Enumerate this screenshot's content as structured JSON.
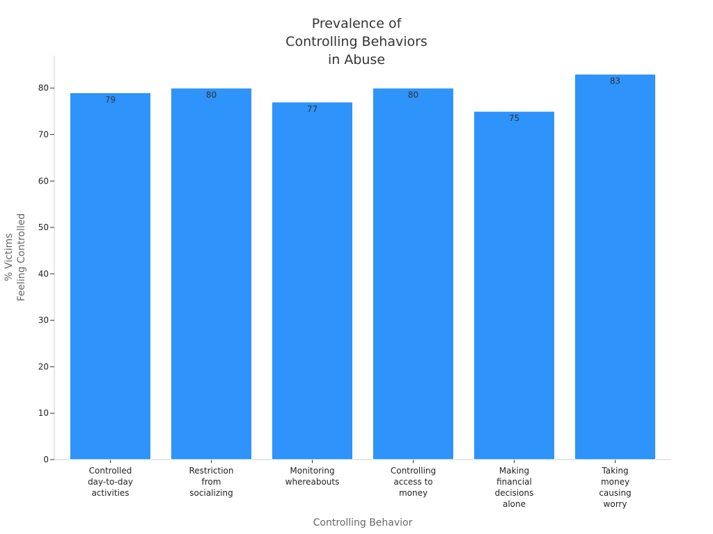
{
  "chart_data": {
    "type": "bar",
    "title": [
      "Prevalence of",
      "Controlling Behaviors",
      "in Abuse"
    ],
    "xlabel": "Controlling Behavior",
    "ylabel": [
      "% Victims",
      "Feeling Controlled"
    ],
    "categories": [
      [
        "Controlled",
        "day-to-day",
        "activities"
      ],
      [
        "Restriction",
        "from",
        "socializing"
      ],
      [
        "Monitoring",
        "whereabouts"
      ],
      [
        "Controlling",
        "access to",
        "money"
      ],
      [
        "Making",
        "financial",
        "decisions",
        "alone"
      ],
      [
        "Taking",
        "money",
        "causing",
        "worry"
      ]
    ],
    "values": [
      79,
      80,
      77,
      80,
      75,
      83
    ],
    "data_labels": [
      "79",
      "80",
      "77",
      "80",
      "75",
      "83"
    ],
    "ylim": [
      0,
      87
    ],
    "yticks": [
      0,
      10,
      20,
      30,
      40,
      50,
      60,
      70,
      80
    ],
    "grid": false,
    "bar_color": "#2e93fa"
  }
}
